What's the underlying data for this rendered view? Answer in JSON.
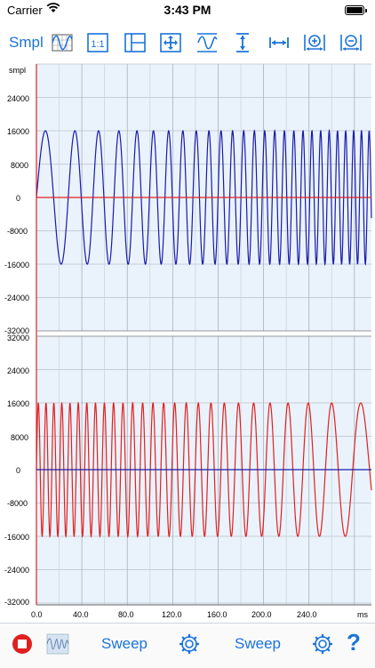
{
  "status_bar": {
    "carrier": "Carrier",
    "time": "3:43 PM"
  },
  "toolbar": {
    "units_label": "Smpl",
    "icons": [
      "waveform-grid-icon",
      "one-to-one-icon",
      "split-view-icon",
      "fit-all-icon",
      "fit-amplitude-icon",
      "vertical-expand-icon",
      "horizontal-expand-icon",
      "zoom-in-icon",
      "zoom-out-icon"
    ],
    "accent": "#1a73d9"
  },
  "top_channel": {
    "unit_label": "smpl",
    "y_ticks": [
      "24000",
      "16000",
      "8000",
      "0",
      "-8000",
      "-16000",
      "-24000",
      "-32000"
    ],
    "trace_color": "#1a1aaa",
    "zero_line_color": "#e02020"
  },
  "bottom_channel": {
    "y_ticks": [
      "32000",
      "24000",
      "16000",
      "8000",
      "0",
      "-8000",
      "-16000",
      "-24000",
      "-32000"
    ],
    "trace_color": "#e02020",
    "zero_line_color": "#1a1aaa"
  },
  "x_axis": {
    "ticks": [
      "0.0",
      "40.0",
      "80.0",
      "120.0",
      "160.0",
      "200.0",
      "240.0"
    ],
    "unit": "ms"
  },
  "bottom_bar": {
    "left_sweep_label": "Sweep",
    "right_sweep_label": "Sweep",
    "help_label": "?",
    "stop_color": "#e02020"
  },
  "chart_data": [
    {
      "type": "line",
      "xlabel": "ms",
      "ylabel": "smpl",
      "xlim": [
        0,
        290
      ],
      "ylim": [
        -32000,
        32000
      ],
      "grid": true,
      "series": [
        {
          "description_free": true,
          "kind": "sine sweep up",
          "amplitude": 16000,
          "start_freq_hz": 30,
          "end_freq_hz": 150,
          "color": "#1a1aaa"
        }
      ]
    },
    {
      "type": "line",
      "xlabel": "ms",
      "ylim": [
        -32000,
        32000
      ],
      "grid": true,
      "series": [
        {
          "kind": "sine sweep down",
          "amplitude": 16000,
          "start_freq_hz": 150,
          "end_freq_hz": 30,
          "color": "#e02020"
        }
      ]
    }
  ]
}
